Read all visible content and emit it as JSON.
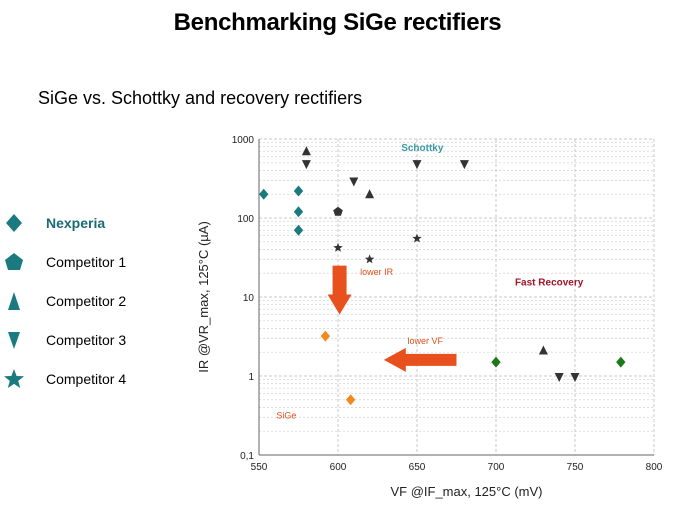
{
  "slide": {
    "title": "Benchmarking SiGe rectifiers",
    "subtitle": "SiGe vs. Schottky and recovery rectifiers"
  },
  "legend": [
    {
      "name": "Nexperia",
      "symbol": "diamond",
      "color": "#1a7a80",
      "bold": true
    },
    {
      "name": "Competitor 1",
      "symbol": "pentagon",
      "color": "#1a7a80",
      "bold": false
    },
    {
      "name": "Competitor 2",
      "symbol": "triangle-up",
      "color": "#1a7a80",
      "bold": false
    },
    {
      "name": "Competitor 3",
      "symbol": "triangle-down",
      "color": "#1a7a80",
      "bold": false
    },
    {
      "name": "Competitor 4",
      "symbol": "star",
      "color": "#1a7a80",
      "bold": false
    }
  ],
  "chart_data": {
    "type": "scatter",
    "xlabel": "VF @IF_max, 125°C (mV)",
    "ylabel": "IR @VR_max, 125°C (µA)",
    "xlim": [
      550,
      800
    ],
    "ylim": [
      0.1,
      1000
    ],
    "yscale": "log",
    "x_ticks": [
      550,
      600,
      650,
      700,
      750,
      800
    ],
    "y_ticks": [
      {
        "value": 0.1,
        "label": "0,1"
      },
      {
        "value": 1,
        "label": "1"
      },
      {
        "value": 10,
        "label": "10"
      },
      {
        "value": 100,
        "label": "100"
      },
      {
        "value": 1000,
        "label": "1000"
      }
    ],
    "grid": true,
    "series": [
      {
        "name": "Nexperia Schottky",
        "symbol": "diamond",
        "color": "#1a7a80",
        "points": [
          [
            553,
            200
          ],
          [
            575,
            220
          ],
          [
            575,
            120
          ],
          [
            575,
            70
          ]
        ]
      },
      {
        "name": "Nexperia SiGe",
        "symbol": "diamond",
        "color": "#f08a1c",
        "points": [
          [
            592,
            3.2
          ],
          [
            608,
            0.5
          ]
        ]
      },
      {
        "name": "Nexperia Fast Recovery",
        "symbol": "diamond",
        "color": "#1c7a1c",
        "points": [
          [
            700,
            1.5
          ],
          [
            779,
            1.5
          ]
        ]
      },
      {
        "name": "Competitor 1",
        "symbol": "pentagon",
        "color": "#333333",
        "points": [
          [
            600,
            120
          ]
        ]
      },
      {
        "name": "Competitor 2",
        "symbol": "triangle-up",
        "color": "#333333",
        "points": [
          [
            580,
            700
          ],
          [
            620,
            200
          ],
          [
            730,
            2.1
          ]
        ]
      },
      {
        "name": "Competitor 3",
        "symbol": "triangle-down",
        "color": "#333333",
        "points": [
          [
            580,
            480
          ],
          [
            610,
            290
          ],
          [
            650,
            480
          ],
          [
            680,
            480
          ],
          [
            740,
            0.97
          ],
          [
            750,
            0.97
          ]
        ]
      },
      {
        "name": "Competitor 4",
        "symbol": "star",
        "color": "#333333",
        "points": [
          [
            600,
            42
          ],
          [
            620,
            30
          ],
          [
            650,
            55
          ]
        ]
      }
    ],
    "annotations": [
      {
        "text": "Schottky",
        "x": 640,
        "y": 700,
        "color": "#3a9aa8",
        "bold": true
      },
      {
        "text": "Fast Recovery",
        "x": 712,
        "y": 14,
        "color": "#a0142a",
        "bold": true
      },
      {
        "text": "SiGe",
        "x": 561,
        "y": 0.29,
        "color": "#e0501c",
        "bold": false
      },
      {
        "text": "lower IR",
        "x": 614,
        "y": 19,
        "color": "#e0501c",
        "bold": false
      },
      {
        "text": "lower VF",
        "x": 644,
        "y": 2.55,
        "color": "#e0501c",
        "bold": false
      }
    ],
    "arrows": [
      {
        "label": "lower IR",
        "direction": "down",
        "from": [
          601,
          25
        ],
        "to": [
          601,
          6.0
        ],
        "color": "#e8501e"
      },
      {
        "label": "lower VF",
        "direction": "left",
        "from": [
          675,
          1.6
        ],
        "to": [
          629,
          1.6
        ],
        "color": "#e8501e"
      }
    ]
  }
}
